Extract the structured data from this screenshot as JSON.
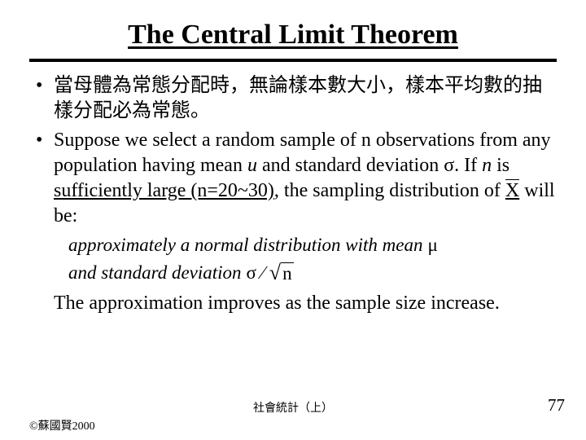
{
  "title": "The Central Limit Theorem",
  "bullet1": "當母體為常態分配時，無論樣本數大小，樣本平均數的抽樣分配必為常態。",
  "bullet2_a": "Suppose we select a random sample of n observations from any population having mean ",
  "bullet2_u": "u",
  "bullet2_b": " and standard deviation σ. If ",
  "bullet2_n": "n",
  "bullet2_c": " is ",
  "bullet2_suf": "sufficiently large (n=20~30)",
  "bullet2_d": ", the sampling distribution of ",
  "bullet2_x": "X",
  "bullet2_e": " will be:",
  "math1_a": "approximately a normal distribution with mean",
  "math1_mu": "μ",
  "math2_a": "and standard deviation",
  "math2_sigma": "σ",
  "math2_slash": "∕",
  "math2_n": "n",
  "closing": "The approximation improves as the sample size increase.",
  "footer_center": "社會統計（上）",
  "page_num": "77",
  "copyright": "©蘇國賢2000",
  "colors": {
    "text": "#000000",
    "bg": "#ffffff"
  },
  "fontsizes": {
    "title": 34,
    "body": 24,
    "math": 23,
    "footer": 14,
    "pagenum": 21
  }
}
